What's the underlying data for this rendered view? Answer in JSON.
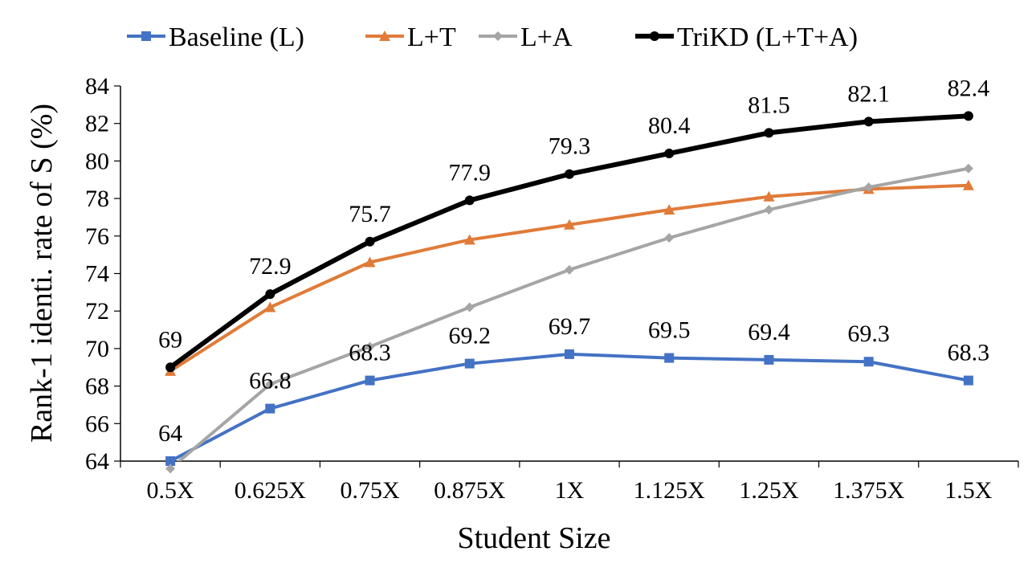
{
  "chart_data": {
    "type": "line",
    "title": "",
    "xlabel": "Student Size",
    "ylabel": "Rank-1 identi. rate of S (%)",
    "categories": [
      "0.5X",
      "0.625X",
      "0.75X",
      "0.875X",
      "1X",
      "1.125X",
      "1.25X",
      "1.375X",
      "1.5X"
    ],
    "ylim": [
      64,
      84
    ],
    "yticks": [
      64,
      66,
      68,
      70,
      72,
      74,
      76,
      78,
      80,
      82,
      84
    ],
    "grid": false,
    "legend_position": "top",
    "series": [
      {
        "name": "Baseline (L)",
        "color": "#4472C4",
        "marker": "square",
        "values": [
          64,
          66.8,
          68.3,
          69.2,
          69.7,
          69.5,
          69.4,
          69.3,
          68.3
        ],
        "labels": [
          "64",
          "66.8",
          "68.3",
          "69.2",
          "69.7",
          "69.5",
          "69.4",
          "69.3",
          "68.3"
        ]
      },
      {
        "name": "L+T",
        "color": "#E07B39",
        "marker": "triangle",
        "values": [
          68.8,
          72.2,
          74.6,
          75.8,
          76.6,
          77.4,
          78.1,
          78.5,
          78.7
        ]
      },
      {
        "name": "L+A",
        "color": "#A5A5A5",
        "marker": "diamond",
        "values": [
          63.6,
          68.1,
          70.1,
          72.2,
          74.2,
          75.9,
          77.4,
          78.6,
          79.6
        ]
      },
      {
        "name": "TriKD (L+T+A)",
        "color": "#000000",
        "marker": "circle",
        "values": [
          69,
          72.9,
          75.7,
          77.9,
          79.3,
          80.4,
          81.5,
          82.1,
          82.4
        ],
        "labels": [
          "69",
          "72.9",
          "75.7",
          "77.9",
          "79.3",
          "80.4",
          "81.5",
          "82.1",
          "82.4"
        ]
      }
    ]
  }
}
